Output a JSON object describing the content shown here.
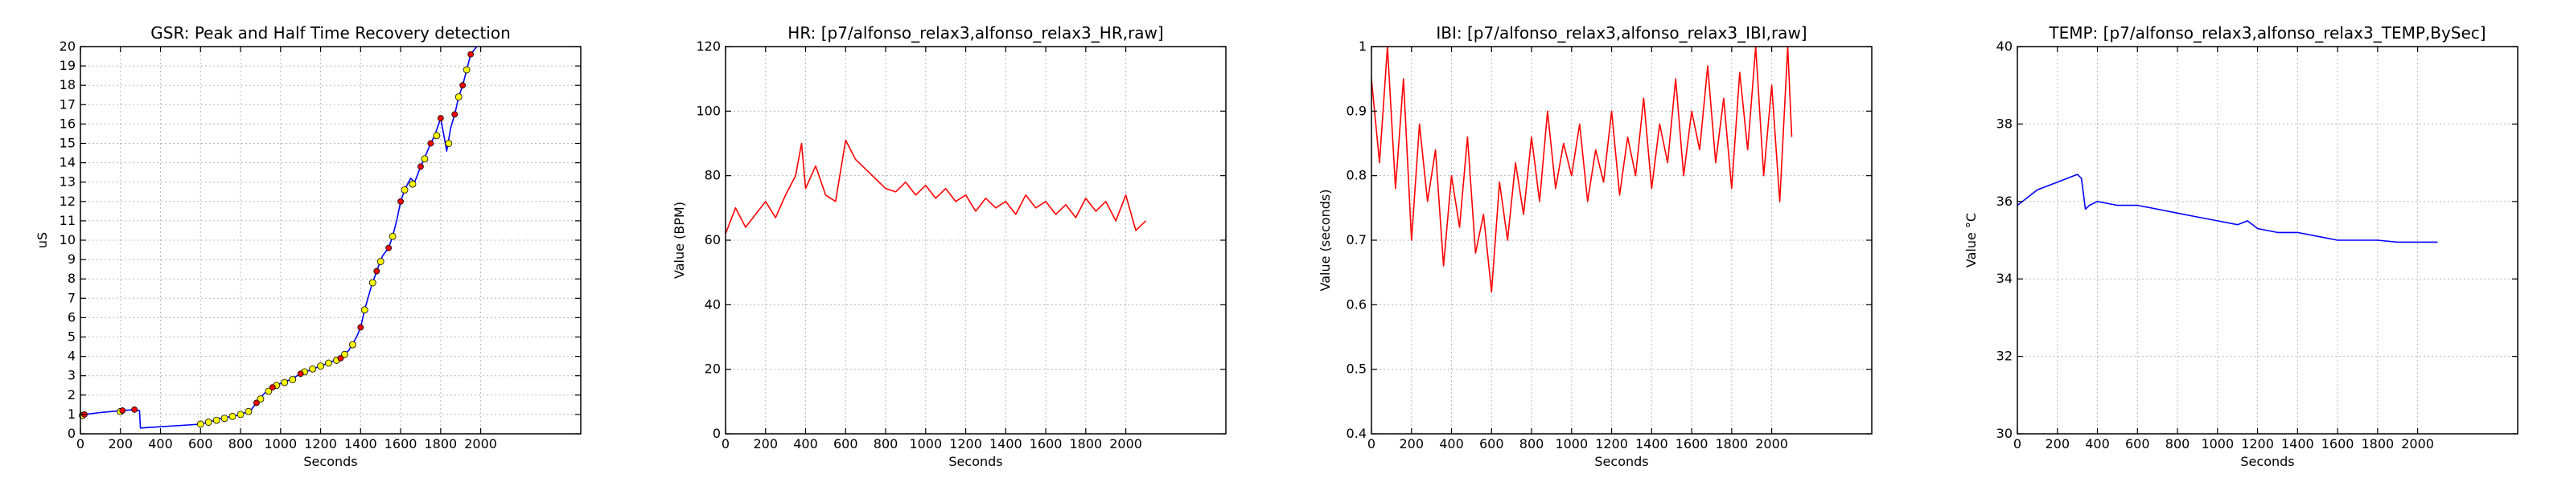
{
  "chart_data": [
    {
      "type": "line",
      "title": "GSR: Peak and Half Time Recovery detection",
      "xlabel": "Seconds",
      "ylabel": "uS",
      "xlim": [
        0,
        2500
      ],
      "ylim": [
        0,
        20
      ],
      "xticks": [
        0,
        200,
        400,
        600,
        800,
        1000,
        1200,
        1400,
        1600,
        1800,
        2000
      ],
      "yticks": [
        0,
        1,
        2,
        3,
        4,
        5,
        6,
        7,
        8,
        9,
        10,
        11,
        12,
        13,
        14,
        15,
        16,
        17,
        18,
        19,
        20
      ],
      "grid": true,
      "series": [
        {
          "color": "#0000ff",
          "x": [
            0,
            20,
            100,
            210,
            270,
            295,
            300,
            600,
            640,
            700,
            760,
            800,
            850,
            880,
            920,
            960,
            1000,
            1050,
            1100,
            1150,
            1200,
            1250,
            1300,
            1340,
            1380,
            1400,
            1420,
            1450,
            1480,
            1510,
            1540,
            1560,
            1580,
            1600,
            1620,
            1650,
            1670,
            1700,
            1730,
            1750,
            1770,
            1800,
            1820,
            1830,
            1850,
            1870,
            1890,
            1910,
            1930,
            1950,
            1980
          ],
          "y": [
            0.9,
            1.0,
            1.1,
            1.2,
            1.25,
            1.2,
            0.3,
            0.5,
            0.6,
            0.8,
            0.9,
            1.0,
            1.2,
            1.6,
            2.1,
            2.4,
            2.6,
            2.8,
            3.1,
            3.3,
            3.5,
            3.7,
            3.9,
            4.3,
            5.0,
            5.5,
            6.4,
            7.5,
            8.4,
            9.2,
            9.6,
            10.2,
            11.0,
            12.0,
            12.6,
            13.2,
            13.0,
            13.8,
            14.5,
            15.0,
            15.4,
            16.3,
            15.2,
            14.6,
            15.8,
            16.5,
            17.4,
            18.0,
            18.8,
            19.6,
            20.0
          ]
        }
      ],
      "markers": {
        "peaks": {
          "color": "#ff0000",
          "x": [
            20,
            210,
            270,
            880,
            960,
            1100,
            1300,
            1400,
            1480,
            1540,
            1600,
            1700,
            1750,
            1800,
            1870,
            1910,
            1950
          ],
          "y": [
            1.0,
            1.2,
            1.25,
            1.6,
            2.4,
            3.1,
            3.9,
            5.5,
            8.4,
            9.6,
            12.0,
            13.8,
            15.0,
            16.3,
            16.5,
            18.0,
            19.6
          ]
        },
        "half_recovery": {
          "color": "#ffff00",
          "x": [
            10,
            200,
            600,
            640,
            680,
            720,
            760,
            800,
            840,
            900,
            940,
            980,
            1020,
            1060,
            1120,
            1160,
            1200,
            1240,
            1280,
            1320,
            1360,
            1420,
            1460,
            1500,
            1560,
            1620,
            1660,
            1720,
            1780,
            1840,
            1890,
            1930
          ],
          "y": [
            0.95,
            1.15,
            0.5,
            0.6,
            0.7,
            0.8,
            0.9,
            1.0,
            1.15,
            1.8,
            2.2,
            2.5,
            2.65,
            2.8,
            3.2,
            3.35,
            3.5,
            3.65,
            3.8,
            4.1,
            4.6,
            6.4,
            7.8,
            8.9,
            10.2,
            12.6,
            12.9,
            14.2,
            15.4,
            15.0,
            17.4,
            18.8
          ]
        }
      }
    },
    {
      "type": "line",
      "title": "HR: [p7/alfonso_relax3,alfonso_relax3_HR,raw]",
      "xlabel": "Seconds",
      "ylabel": "Value (BPM)",
      "xlim": [
        0,
        2500
      ],
      "ylim": [
        0,
        120
      ],
      "xticks": [
        0,
        200,
        400,
        600,
        800,
        1000,
        1200,
        1400,
        1600,
        1800,
        2000
      ],
      "yticks": [
        0,
        20,
        40,
        60,
        80,
        100,
        120
      ],
      "grid": true,
      "series": [
        {
          "color": "#ff0000",
          "x": [
            0,
            50,
            100,
            150,
            200,
            250,
            300,
            350,
            380,
            400,
            450,
            500,
            550,
            600,
            650,
            700,
            750,
            800,
            850,
            900,
            950,
            1000,
            1050,
            1100,
            1150,
            1200,
            1250,
            1300,
            1350,
            1400,
            1450,
            1500,
            1550,
            1600,
            1650,
            1700,
            1750,
            1800,
            1850,
            1900,
            1950,
            2000,
            2050,
            2100
          ],
          "y": [
            62,
            70,
            64,
            68,
            72,
            67,
            74,
            80,
            90,
            76,
            83,
            74,
            72,
            91,
            85,
            82,
            79,
            76,
            75,
            78,
            74,
            77,
            73,
            76,
            72,
            74,
            69,
            73,
            70,
            72,
            68,
            74,
            70,
            72,
            68,
            71,
            67,
            73,
            69,
            72,
            66,
            74,
            63,
            66
          ]
        }
      ]
    },
    {
      "type": "line",
      "title": "IBI: [p7/alfonso_relax3,alfonso_relax3_IBI,raw]",
      "xlabel": "Seconds",
      "ylabel": "Value (seconds)",
      "xlim": [
        0,
        2500
      ],
      "ylim": [
        0.4,
        1.0
      ],
      "xticks": [
        0,
        200,
        400,
        600,
        800,
        1000,
        1200,
        1400,
        1600,
        1800,
        2000
      ],
      "yticks": [
        0.4,
        0.5,
        0.6,
        0.7,
        0.8,
        0.9,
        1.0
      ],
      "grid": true,
      "series": [
        {
          "color": "#ff0000",
          "x": [
            0,
            40,
            80,
            120,
            160,
            200,
            240,
            280,
            320,
            360,
            400,
            440,
            480,
            520,
            560,
            600,
            640,
            680,
            720,
            760,
            800,
            840,
            880,
            920,
            960,
            1000,
            1040,
            1080,
            1120,
            1160,
            1200,
            1240,
            1280,
            1320,
            1360,
            1400,
            1440,
            1480,
            1520,
            1560,
            1600,
            1640,
            1680,
            1720,
            1760,
            1800,
            1840,
            1880,
            1920,
            1960,
            2000,
            2040,
            2080,
            2100
          ],
          "y": [
            0.95,
            0.82,
            1.0,
            0.78,
            0.95,
            0.7,
            0.88,
            0.76,
            0.84,
            0.66,
            0.8,
            0.72,
            0.86,
            0.68,
            0.74,
            0.62,
            0.79,
            0.7,
            0.82,
            0.74,
            0.86,
            0.76,
            0.9,
            0.78,
            0.85,
            0.8,
            0.88,
            0.76,
            0.84,
            0.79,
            0.9,
            0.77,
            0.86,
            0.8,
            0.92,
            0.78,
            0.88,
            0.82,
            0.95,
            0.8,
            0.9,
            0.84,
            0.97,
            0.82,
            0.92,
            0.78,
            0.96,
            0.84,
            1.0,
            0.8,
            0.94,
            0.76,
            1.0,
            0.86
          ]
        }
      ]
    },
    {
      "type": "line",
      "title": "TEMP: [p7/alfonso_relax3,alfonso_relax3_TEMP,BySec]",
      "xlabel": "Seconds",
      "ylabel": "Value °C",
      "xlim": [
        0,
        2500
      ],
      "ylim": [
        30,
        40
      ],
      "xticks": [
        0,
        200,
        400,
        600,
        800,
        1000,
        1200,
        1400,
        1600,
        1800,
        2000
      ],
      "yticks": [
        30,
        32,
        34,
        36,
        38,
        40
      ],
      "grid": true,
      "series": [
        {
          "color": "#0000ff",
          "x": [
            0,
            50,
            100,
            150,
            200,
            250,
            300,
            320,
            340,
            360,
            400,
            500,
            600,
            700,
            800,
            900,
            1000,
            1100,
            1150,
            1200,
            1300,
            1400,
            1500,
            1600,
            1700,
            1800,
            1900,
            2000,
            2100
          ],
          "y": [
            35.9,
            36.1,
            36.3,
            36.4,
            36.5,
            36.6,
            36.7,
            36.6,
            35.8,
            35.9,
            36.0,
            35.9,
            35.9,
            35.8,
            35.7,
            35.6,
            35.5,
            35.4,
            35.5,
            35.3,
            35.2,
            35.2,
            35.1,
            35.0,
            35.0,
            35.0,
            34.95,
            34.95,
            34.95
          ]
        }
      ]
    }
  ]
}
